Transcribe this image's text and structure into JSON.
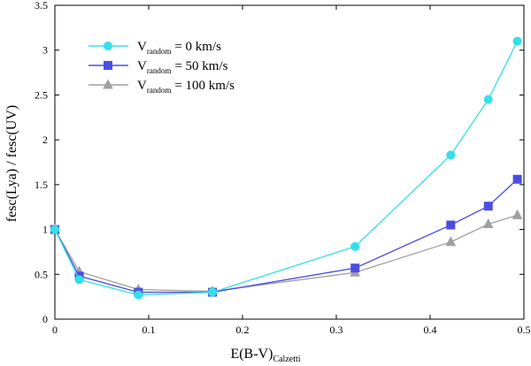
{
  "chart_data": {
    "type": "line",
    "xlabel": {
      "main": "E(B-V)",
      "sub": "Calzetti"
    },
    "ylabel": "fesc(Lya) / fesc(UV)",
    "xlim": [
      0,
      0.5
    ],
    "ylim": [
      0,
      3.5
    ],
    "xticks": [
      0,
      0.1,
      0.2,
      0.3,
      0.4,
      0.5
    ],
    "xtick_labels": [
      "0",
      "0.1",
      "0.2",
      "0.3",
      "0.4",
      "0.5"
    ],
    "yticks": [
      0,
      0.5,
      1,
      1.5,
      2,
      2.5,
      3,
      3.5
    ],
    "ytick_labels": [
      "0",
      "0.5",
      "1",
      "1.5",
      "2",
      "2.5",
      "3",
      "3.5"
    ],
    "grid": false,
    "legend_position": "top-left",
    "series": [
      {
        "name": "= 0 km/s",
        "label_main": "V",
        "label_sub": "random",
        "label_rest": "= 0 km/s",
        "color": "#33e0e8",
        "marker": "circle",
        "x": [
          0,
          0.026,
          0.089,
          0.168,
          0.32,
          0.422,
          0.462,
          0.493
        ],
        "y": [
          1.0,
          0.44,
          0.27,
          0.3,
          0.81,
          1.83,
          2.45,
          3.1
        ]
      },
      {
        "name": "= 50 km/s",
        "label_main": "V",
        "label_sub": "random",
        "label_rest": "= 50 km/s",
        "color": "#4a4ee0",
        "marker": "square",
        "x": [
          0,
          0.026,
          0.089,
          0.168,
          0.32,
          0.422,
          0.462,
          0.493
        ],
        "y": [
          1.0,
          0.48,
          0.3,
          0.3,
          0.57,
          1.05,
          1.26,
          1.56
        ]
      },
      {
        "name": "= 100 km/s",
        "label_main": "V",
        "label_sub": "random",
        "label_rest": "= 100 km/s",
        "color": "#a0a0a0",
        "marker": "triangle",
        "x": [
          0,
          0.026,
          0.089,
          0.168,
          0.32,
          0.422,
          0.462,
          0.493
        ],
        "y": [
          1.0,
          0.53,
          0.33,
          0.31,
          0.52,
          0.86,
          1.06,
          1.16
        ]
      }
    ]
  }
}
